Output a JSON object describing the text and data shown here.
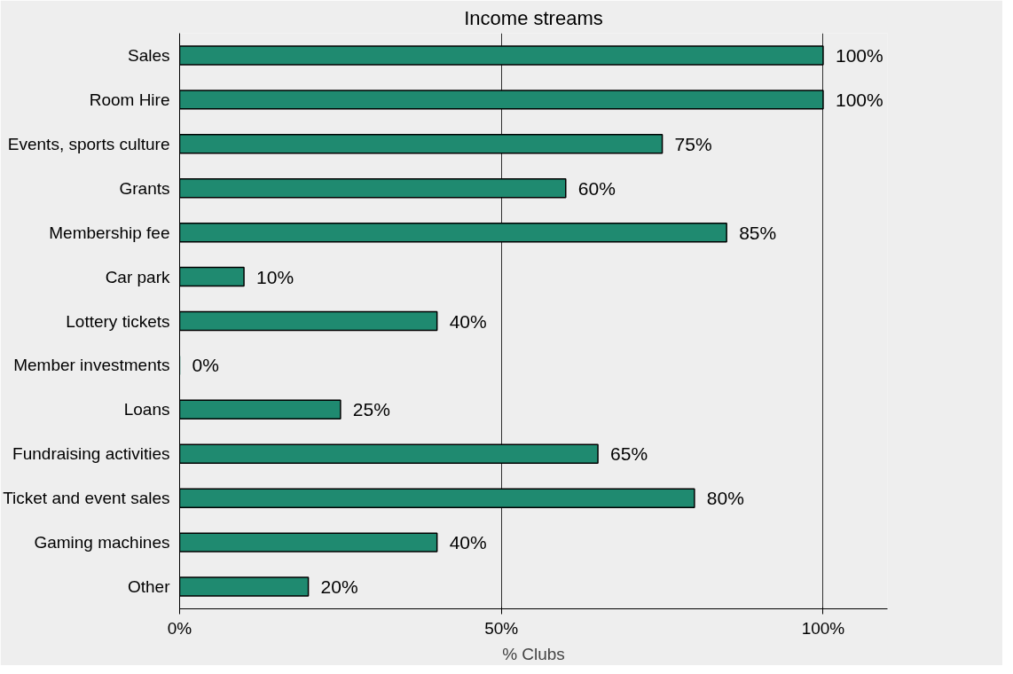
{
  "chart_data": {
    "type": "bar",
    "orientation": "horizontal",
    "title": "Income streams",
    "xlabel": "% Clubs",
    "categories": [
      "Sales",
      "Room Hire",
      "Events, sports culture",
      "Grants",
      "Membership fee",
      "Car park",
      "Lottery tickets",
      "Member investments",
      "Loans",
      "Fundraising activities",
      "Ticket and event sales",
      "Gaming machines",
      "Other"
    ],
    "values": [
      100,
      100,
      75,
      60,
      85,
      10,
      40,
      0,
      25,
      65,
      80,
      40,
      20
    ],
    "value_labels": [
      "100%",
      "100%",
      "75%",
      "60%",
      "85%",
      "10%",
      "40%",
      "0%",
      "25%",
      "65%",
      "80%",
      "40%",
      "20%"
    ],
    "color": "#1f8a70",
    "xlim": [
      0,
      110
    ],
    "xticks": [
      {
        "value": 0,
        "label": "0%"
      },
      {
        "value": 50,
        "label": "50%"
      },
      {
        "value": 100,
        "label": "100%"
      }
    ],
    "grid": "x"
  }
}
